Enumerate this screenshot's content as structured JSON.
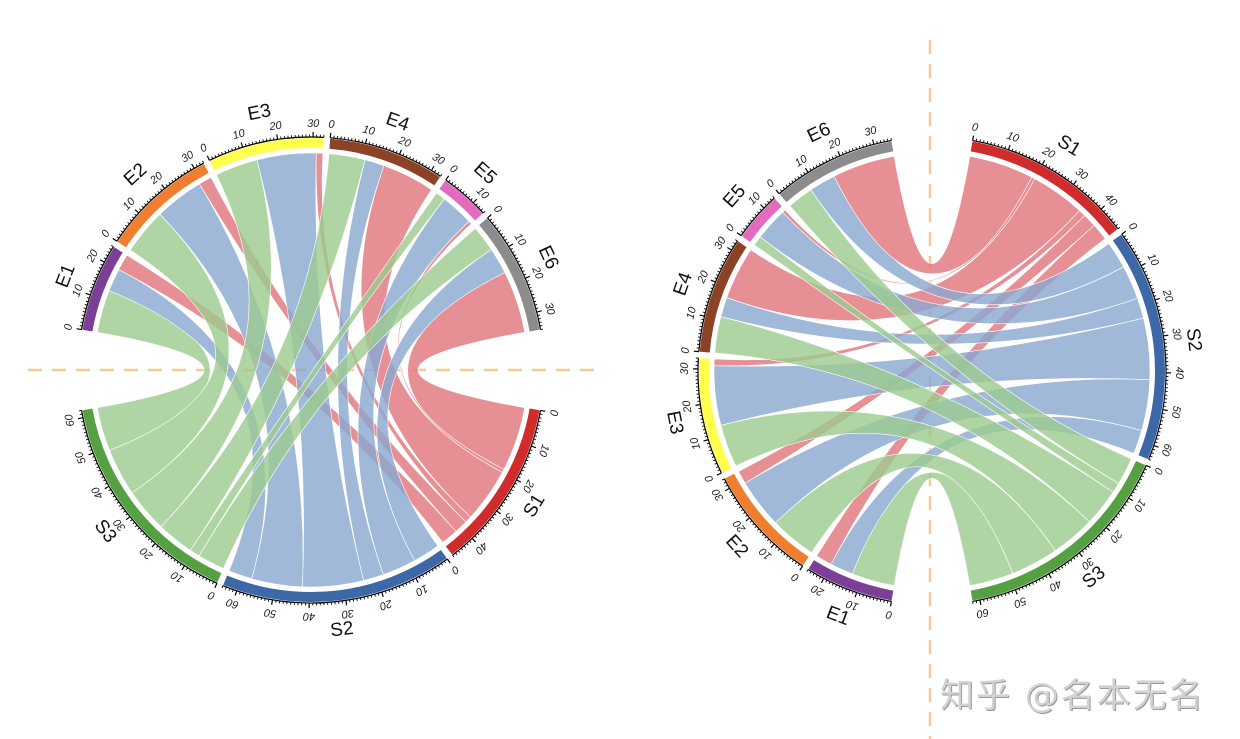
{
  "chart_data": [
    {
      "type": "chord",
      "title": "",
      "layout": "horizontal-gap",
      "center": [
        311,
        370
      ],
      "outer_radius": 232,
      "sectors": [
        {
          "name": "E1",
          "max": 25,
          "color": "#7B3F98"
        },
        {
          "name": "E2",
          "max": 33,
          "color": "#F07E2E"
        },
        {
          "name": "E3",
          "max": 33,
          "color": "#FFFF4D"
        },
        {
          "name": "E4",
          "max": 33,
          "color": "#8B4226"
        },
        {
          "name": "E5",
          "max": 14,
          "color": "#E36BBE"
        },
        {
          "name": "E6",
          "max": 35,
          "color": "#8C8C8C"
        },
        {
          "name": "S1",
          "max": 47,
          "color": "#D12C2C"
        },
        {
          "name": "S2",
          "max": 64,
          "color": "#3D68A8"
        },
        {
          "name": "S3",
          "max": 62,
          "color": "#56A044"
        }
      ],
      "links": [
        {
          "from": "E1",
          "to": "S3",
          "value": 13
        },
        {
          "from": "E1",
          "to": "S2",
          "value": 7
        },
        {
          "from": "E1",
          "to": "S1",
          "value": 5
        },
        {
          "from": "E2",
          "to": "S3",
          "value": 14
        },
        {
          "from": "E2",
          "to": "S2",
          "value": 15
        },
        {
          "from": "E2",
          "to": "S1",
          "value": 4
        },
        {
          "from": "E3",
          "to": "S3",
          "value": 13
        },
        {
          "from": "E3",
          "to": "S2",
          "value": 18
        },
        {
          "from": "E3",
          "to": "S1",
          "value": 2
        },
        {
          "from": "E4",
          "to": "S3",
          "value": 11
        },
        {
          "from": "E4",
          "to": "S2",
          "value": 6
        },
        {
          "from": "E4",
          "to": "S1",
          "value": 16
        },
        {
          "from": "E5",
          "to": "S3",
          "value": 3
        },
        {
          "from": "E5",
          "to": "S2",
          "value": 10
        },
        {
          "from": "E5",
          "to": "S1",
          "value": 1
        },
        {
          "from": "E6",
          "to": "S3",
          "value": 8
        },
        {
          "from": "E6",
          "to": "S2",
          "value": 8
        },
        {
          "from": "E6",
          "to": "S1",
          "value": 19
        }
      ],
      "link_colors": {
        "S1": "#E0737B",
        "S2": "#8AA8CF",
        "S3": "#9CCB8E"
      },
      "tick_step": 10,
      "guide_line": "horizontal dashed"
    },
    {
      "type": "chord",
      "title": "",
      "layout": "vertical-gap",
      "center": [
        932,
        371
      ],
      "outer_radius": 233,
      "sectors": [
        {
          "name": "E1",
          "max": 25,
          "color": "#7B3F98"
        },
        {
          "name": "E2",
          "max": 33,
          "color": "#F07E2E"
        },
        {
          "name": "E3",
          "max": 33,
          "color": "#FFFF4D"
        },
        {
          "name": "E4",
          "max": 33,
          "color": "#8B4226"
        },
        {
          "name": "E5",
          "max": 14,
          "color": "#E36BBE"
        },
        {
          "name": "E6",
          "max": 35,
          "color": "#8C8C8C"
        },
        {
          "name": "S1",
          "max": 47,
          "color": "#D12C2C"
        },
        {
          "name": "S2",
          "max": 64,
          "color": "#3D68A8"
        },
        {
          "name": "S3",
          "max": 62,
          "color": "#56A044"
        }
      ],
      "links": "same as chart 1",
      "tick_step": 10,
      "guide_line": "vertical dashed"
    }
  ],
  "guide_color": "#F7C99A",
  "watermark": "知乎 @名本无名"
}
